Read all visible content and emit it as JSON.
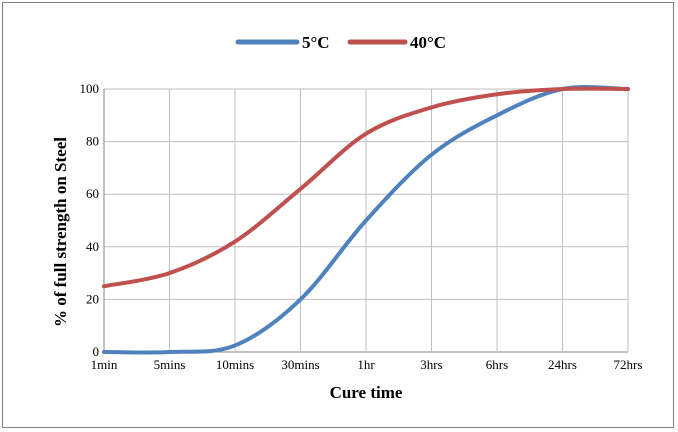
{
  "chart_data": {
    "type": "line",
    "title": "",
    "xlabel": "Cure time",
    "ylabel": "% of full strength on Steel",
    "categories": [
      "1min",
      "5mins",
      "10mins",
      "30mins",
      "1hr",
      "3hrs",
      "6hrs",
      "24hrs",
      "72hrs"
    ],
    "ylim": [
      0,
      100
    ],
    "yticks": [
      "0",
      "20",
      "40",
      "60",
      "80",
      "100"
    ],
    "grid": true,
    "legend_position": "top",
    "series": [
      {
        "name": "5°C",
        "color": "#4f81bd",
        "values": [
          0,
          0,
          2.5,
          20,
          50,
          75,
          90,
          100,
          100
        ]
      },
      {
        "name": "40°C",
        "color": "#c0504d",
        "values": [
          25,
          30,
          42,
          62,
          83,
          93,
          98,
          100,
          100
        ]
      }
    ]
  }
}
